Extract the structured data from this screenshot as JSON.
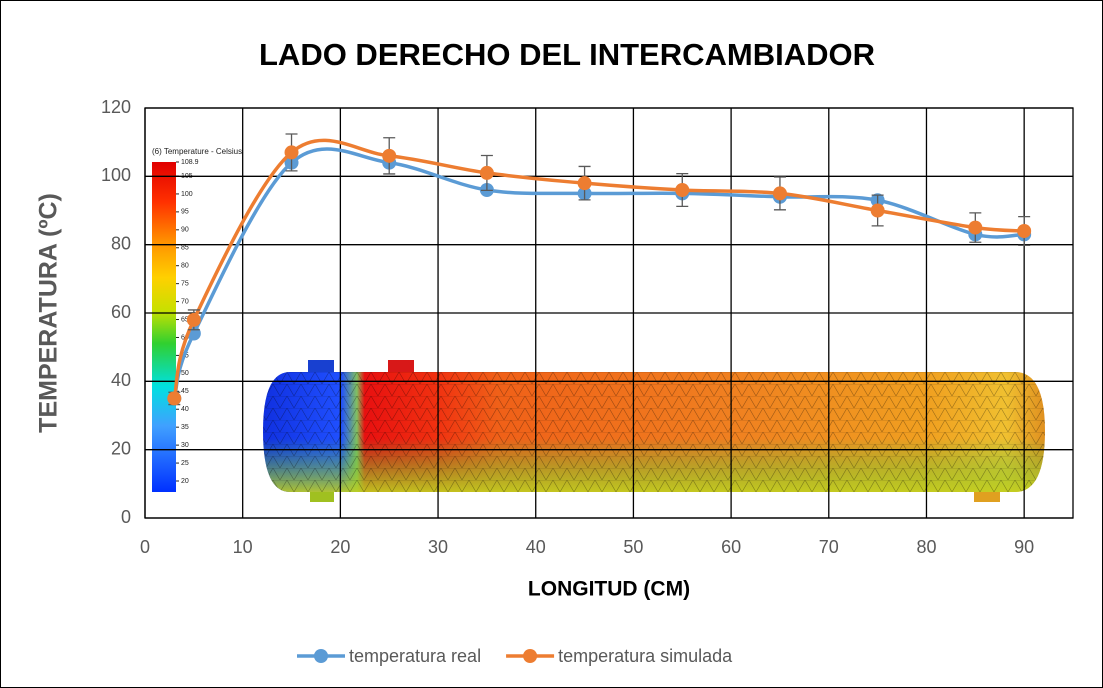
{
  "chart_data": {
    "type": "line",
    "title": "LADO DERECHO DEL INTERCAMBIADOR",
    "x_label": "LONGITUD (CM)",
    "y_label": "TEMPERATURA (ºC)",
    "x": [
      3,
      5,
      15,
      25,
      35,
      45,
      55,
      65,
      75,
      85,
      90
    ],
    "series": [
      {
        "name": "temperatura real",
        "color": "#5b9bd5",
        "values": [
          35,
          54,
          104,
          104,
          96,
          95,
          95,
          94,
          93,
          83,
          83
        ]
      },
      {
        "name": "temperatura simulada",
        "color": "#ed7d31",
        "values": [
          35,
          58,
          107,
          106,
          101,
          98,
          96,
          95,
          90,
          85,
          84
        ],
        "errors": [
          1.8,
          2.9,
          5.4,
          5.3,
          5.1,
          4.9,
          4.8,
          4.8,
          4.5,
          4.3,
          4.2
        ]
      }
    ],
    "xlim": [
      0,
      95
    ],
    "xticks": [
      0,
      10,
      20,
      30,
      40,
      50,
      60,
      70,
      80,
      90
    ],
    "ylim": [
      0,
      120
    ],
    "yticks": [
      0,
      20,
      40,
      60,
      80,
      100,
      120
    ],
    "grid": true,
    "legend": "bottom",
    "inset": {
      "title": "(6) Temperature - Celsius",
      "labels": [
        108.9,
        105,
        100,
        95,
        90,
        85,
        80,
        75,
        70,
        65,
        60,
        55,
        50,
        45,
        40,
        35,
        30,
        25,
        20
      ]
    }
  }
}
